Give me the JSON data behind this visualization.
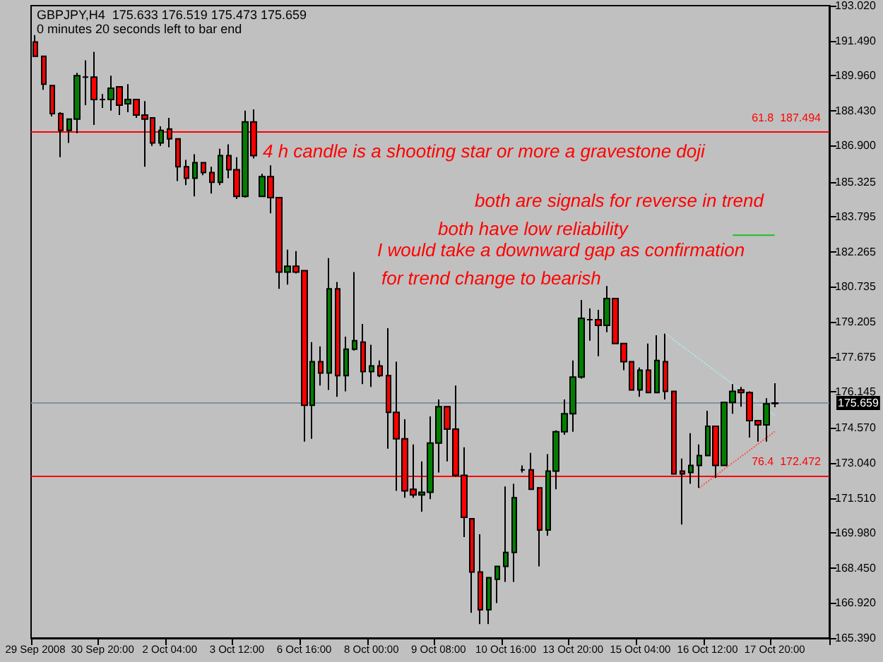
{
  "chart_data": {
    "type": "candlestick",
    "title": "GBPJPY,H4  175.633 176.519 175.473 175.659",
    "subtitle": "0 minutes 20 seconds left to bar end",
    "annotations": [
      "4 h candle is a shooting star or more a gravestone doji",
      "both are signals for reverse in trend",
      "both have low reliability",
      "I would take a downward gap as confirmation",
      "for trend change to bearish"
    ],
    "categories": [
      "29 Sep 2008",
      null,
      null,
      null,
      null,
      null,
      null,
      null,
      "30 Sep 20:00",
      null,
      null,
      null,
      null,
      null,
      null,
      null,
      "2 Oct 04:00",
      null,
      null,
      null,
      null,
      null,
      null,
      null,
      "3 Oct 12:00",
      null,
      null,
      null,
      null,
      null,
      null,
      null,
      "6 Oct 16:00",
      null,
      null,
      null,
      null,
      null,
      null,
      null,
      "8 Oct 00:00",
      null,
      null,
      null,
      null,
      null,
      null,
      null,
      "9 Oct 08:00",
      null,
      null,
      null,
      null,
      null,
      null,
      null,
      "10 Oct 16:00",
      null,
      null,
      null,
      null,
      null,
      null,
      null,
      "13 Oct 20:00",
      null,
      null,
      null,
      null,
      null,
      null,
      null,
      "15 Oct 04:00",
      null,
      null,
      null,
      null,
      null,
      null,
      null,
      "16 Oct 12:00",
      null,
      null,
      null,
      null,
      null,
      null,
      null,
      "17 Oct 20:00"
    ],
    "ohlc": [
      [
        191.43,
        191.73,
        190.81,
        190.81
      ],
      [
        190.81,
        190.81,
        189.34,
        189.59
      ],
      [
        189.53,
        189.53,
        188.18,
        188.3
      ],
      [
        188.3,
        188.36,
        186.4,
        187.57
      ],
      [
        187.57,
        188.06,
        187.02,
        188.06
      ],
      [
        188.06,
        190.08,
        187.45,
        189.96
      ],
      [
        189.9,
        190.63,
        188.67,
        189.9
      ],
      [
        189.9,
        191.0,
        187.81,
        188.92
      ],
      [
        188.92,
        189.16,
        188.55,
        188.92
      ],
      [
        188.92,
        189.96,
        188.43,
        189.41
      ],
      [
        189.47,
        189.47,
        188.24,
        188.67
      ],
      [
        188.73,
        189.59,
        188.36,
        188.92
      ],
      [
        188.92,
        188.92,
        188.12,
        188.24
      ],
      [
        188.24,
        188.85,
        185.98,
        188.06
      ],
      [
        188.12,
        188.12,
        186.89,
        187.02
      ],
      [
        187.02,
        187.75,
        186.89,
        187.57
      ],
      [
        187.63,
        188.12,
        186.83,
        187.2
      ],
      [
        187.2,
        187.2,
        185.36,
        185.98
      ],
      [
        185.98,
        186.28,
        185.18,
        185.48
      ],
      [
        185.48,
        186.53,
        184.69,
        186.16
      ],
      [
        186.16,
        186.16,
        185.61,
        185.73
      ],
      [
        185.73,
        185.98,
        184.81,
        185.3
      ],
      [
        185.3,
        186.77,
        185.18,
        186.47
      ],
      [
        186.47,
        186.96,
        185.48,
        185.85
      ],
      [
        185.85,
        186.4,
        184.57,
        184.69
      ],
      [
        184.69,
        188.43,
        184.63,
        187.94
      ],
      [
        187.94,
        188.49,
        186.34,
        186.47
      ],
      [
        184.69,
        185.67,
        184.69,
        185.55
      ],
      [
        185.55,
        186.04,
        183.95,
        184.63
      ],
      [
        184.63,
        184.63,
        180.65,
        181.38
      ],
      [
        181.38,
        182.36,
        180.83,
        181.63
      ],
      [
        181.63,
        182.3,
        181.32,
        181.38
      ],
      [
        181.44,
        181.44,
        173.97,
        175.56
      ],
      [
        175.56,
        178.32,
        174.09,
        177.46
      ],
      [
        177.46,
        178.13,
        176.42,
        176.97
      ],
      [
        176.97,
        181.99,
        176.23,
        180.65
      ],
      [
        180.65,
        180.95,
        175.93,
        176.85
      ],
      [
        176.85,
        178.56,
        176.17,
        178.01
      ],
      [
        178.01,
        181.38,
        177.95,
        178.38
      ],
      [
        178.32,
        179.11,
        176.48,
        177.03
      ],
      [
        177.03,
        178.2,
        176.36,
        177.28
      ],
      [
        177.28,
        177.52,
        176.79,
        176.85
      ],
      [
        176.85,
        178.93,
        173.66,
        175.25
      ],
      [
        175.25,
        177.46,
        171.82,
        174.09
      ],
      [
        174.09,
        174.95,
        171.52,
        171.82
      ],
      [
        171.89,
        173.85,
        171.52,
        171.64
      ],
      [
        171.64,
        173.11,
        170.91,
        171.76
      ],
      [
        171.76,
        175.07,
        171.46,
        173.91
      ],
      [
        173.91,
        175.81,
        172.62,
        175.5
      ],
      [
        175.5,
        175.5,
        173.11,
        174.52
      ],
      [
        174.52,
        176.42,
        172.44,
        172.5
      ],
      [
        172.5,
        173.72,
        169.8,
        170.66
      ],
      [
        170.6,
        170.6,
        166.49,
        168.27
      ],
      [
        168.27,
        169.92,
        166.0,
        166.62
      ],
      [
        166.62,
        168.03,
        166.0,
        168.03
      ],
      [
        167.96,
        168.52,
        166.92,
        168.52
      ],
      [
        168.52,
        172.01,
        167.84,
        169.13
      ],
      [
        169.13,
        172.13,
        167.84,
        171.52
      ],
      [
        172.74,
        172.93,
        172.62,
        172.74
      ],
      [
        172.74,
        173.48,
        171.89,
        171.89
      ],
      [
        171.95,
        171.95,
        168.52,
        170.11
      ],
      [
        170.11,
        173.42,
        169.86,
        172.68
      ],
      [
        172.68,
        174.46,
        171.89,
        174.4
      ],
      [
        174.4,
        175.81,
        174.27,
        175.19
      ],
      [
        175.19,
        177.52,
        174.4,
        176.79
      ],
      [
        176.79,
        180.16,
        176.72,
        179.36
      ],
      [
        179.3,
        179.79,
        178.38,
        179.3
      ],
      [
        179.3,
        179.73,
        177.7,
        179.05
      ],
      [
        179.05,
        180.77,
        178.75,
        180.22
      ],
      [
        180.22,
        180.22,
        178.26,
        178.26
      ],
      [
        178.26,
        178.26,
        177.09,
        177.46
      ],
      [
        177.46,
        177.46,
        176.23,
        176.23
      ],
      [
        176.23,
        177.21,
        175.93,
        177.09
      ],
      [
        177.09,
        178.26,
        176.11,
        176.11
      ],
      [
        176.11,
        178.62,
        176.11,
        177.52
      ],
      [
        177.46,
        178.69,
        175.81,
        176.17
      ],
      [
        176.17,
        176.17,
        172.56,
        172.56
      ],
      [
        172.68,
        173.23,
        170.35,
        172.56
      ],
      [
        172.62,
        174.34,
        172.13,
        172.93
      ],
      [
        172.93,
        173.85,
        171.95,
        173.36
      ],
      [
        173.36,
        175.32,
        173.36,
        174.64
      ],
      [
        174.64,
        174.64,
        172.38,
        172.93
      ],
      [
        172.93,
        175.68,
        172.93,
        175.68
      ],
      [
        175.68,
        176.48,
        175.19,
        176.17
      ],
      [
        176.23,
        176.36,
        175.5,
        176.11
      ],
      [
        176.11,
        176.17,
        174.15,
        174.89
      ],
      [
        174.89,
        174.89,
        173.97,
        174.7
      ],
      [
        174.7,
        175.87,
        173.97,
        175.62
      ],
      [
        175.633,
        176.519,
        175.473,
        175.659
      ]
    ],
    "series": [
      {
        "type": "line",
        "color": "#ff5050",
        "line_style": "dotted",
        "values": [
          null,
          null,
          null,
          null,
          null,
          null,
          null,
          null,
          null,
          null,
          null,
          null,
          null,
          null,
          null,
          null,
          null,
          null,
          null,
          null,
          null,
          null,
          null,
          null,
          null,
          null,
          null,
          null,
          null,
          null,
          null,
          null,
          null,
          null,
          null,
          null,
          null,
          null,
          null,
          null,
          null,
          null,
          null,
          null,
          null,
          null,
          null,
          null,
          null,
          null,
          null,
          null,
          null,
          null,
          null,
          null,
          null,
          null,
          null,
          null,
          null,
          null,
          null,
          null,
          null,
          null,
          null,
          null,
          null,
          null,
          null,
          null,
          null,
          null,
          null,
          null,
          null,
          null,
          null,
          171.95,
          null,
          null,
          null,
          null,
          null,
          null,
          null,
          null,
          174.41
        ]
      },
      {
        "type": "line",
        "color": "#b0e8e8",
        "line_style": "dotted",
        "values": [
          null,
          null,
          null,
          null,
          null,
          null,
          null,
          null,
          null,
          null,
          null,
          null,
          null,
          null,
          null,
          null,
          null,
          null,
          null,
          null,
          null,
          null,
          null,
          null,
          null,
          null,
          null,
          null,
          null,
          null,
          null,
          null,
          null,
          null,
          null,
          null,
          null,
          null,
          null,
          null,
          null,
          null,
          null,
          null,
          null,
          null,
          null,
          null,
          null,
          null,
          null,
          null,
          null,
          null,
          null,
          null,
          null,
          null,
          null,
          null,
          null,
          null,
          null,
          null,
          null,
          null,
          null,
          null,
          null,
          null,
          null,
          null,
          null,
          null,
          null,
          178.69,
          null,
          null,
          null,
          null,
          null,
          null,
          null,
          null,
          null,
          null,
          null,
          null,
          175.11
        ]
      },
      {
        "type": "line",
        "color": "#20c020",
        "values": [
          null,
          null,
          null,
          null,
          null,
          null,
          null,
          null,
          null,
          null,
          null,
          null,
          null,
          null,
          null,
          null,
          null,
          null,
          null,
          null,
          null,
          null,
          null,
          null,
          null,
          null,
          null,
          null,
          null,
          null,
          null,
          null,
          null,
          null,
          null,
          null,
          null,
          null,
          null,
          null,
          null,
          null,
          null,
          null,
          null,
          null,
          null,
          null,
          null,
          null,
          null,
          null,
          null,
          null,
          null,
          null,
          null,
          null,
          null,
          null,
          null,
          null,
          null,
          null,
          null,
          null,
          null,
          null,
          null,
          null,
          null,
          null,
          null,
          null,
          null,
          null,
          null,
          null,
          null,
          null,
          null,
          null,
          null,
          182.99,
          182.99,
          182.99,
          182.99,
          182.99,
          182.99
        ]
      }
    ],
    "ref_lines": [
      {
        "axis": "y",
        "value": 187.494,
        "label": "61.8  187.494",
        "color": "#ff0000"
      },
      {
        "axis": "y",
        "value": 175.659,
        "label": "175.659",
        "color": "#8090a0"
      },
      {
        "axis": "y",
        "value": 172.472,
        "label": "76.4  172.472",
        "color": "#ff0000"
      }
    ],
    "ylim": [
      165.39,
      193.02
    ],
    "yticks": [
      {
        "value": 193.02,
        "label": "193.020"
      },
      {
        "value": 191.49,
        "label": "191.490"
      },
      {
        "value": 189.96,
        "label": "189.960"
      },
      {
        "value": 188.43,
        "label": "188.430"
      },
      {
        "value": 186.9,
        "label": "186.900"
      },
      {
        "value": 185.325,
        "label": "185.325"
      },
      {
        "value": 183.795,
        "label": "183.795"
      },
      {
        "value": 182.265,
        "label": "182.265"
      },
      {
        "value": 180.735,
        "label": "180.735"
      },
      {
        "value": 179.205,
        "label": "179.205"
      },
      {
        "value": 177.675,
        "label": "177.675"
      },
      {
        "value": 176.145,
        "label": "176.145"
      },
      {
        "value": 174.57,
        "label": "174.570"
      },
      {
        "value": 173.04,
        "label": "173.040"
      },
      {
        "value": 171.51,
        "label": "171.510"
      },
      {
        "value": 169.98,
        "label": "169.980"
      },
      {
        "value": 168.45,
        "label": "168.450"
      },
      {
        "value": 166.92,
        "label": "166.920"
      },
      {
        "value": 165.39,
        "label": "165.390"
      }
    ],
    "grid": false
  }
}
